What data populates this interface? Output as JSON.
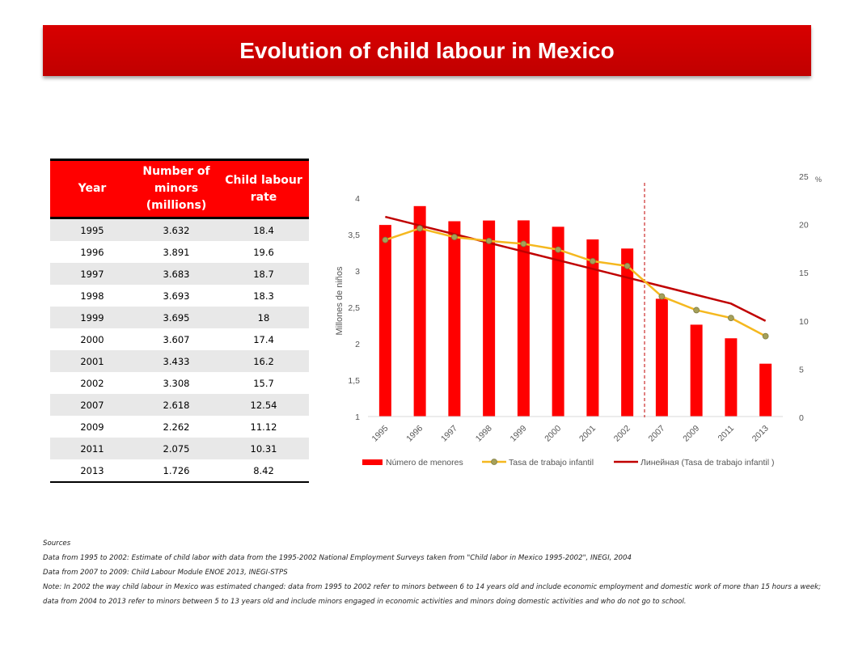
{
  "title": "Evolution of child labour in Mexico",
  "table": {
    "headers": [
      "Year",
      "Number of minors (millions)",
      "Child labour rate"
    ],
    "rows": [
      [
        "1995",
        "3.632",
        "18.4"
      ],
      [
        "1996",
        "3.891",
        "19.6"
      ],
      [
        "1997",
        "3.683",
        "18.7"
      ],
      [
        "1998",
        "3.693",
        "18.3"
      ],
      [
        "1999",
        "3.695",
        "18"
      ],
      [
        "2000",
        "3.607",
        "17.4"
      ],
      [
        "2001",
        "3.433",
        "16.2"
      ],
      [
        "2002",
        "3.308",
        "15.7"
      ],
      [
        "2007",
        "2.618",
        "12.54"
      ],
      [
        "2009",
        "2.262",
        "11.12"
      ],
      [
        "2011",
        "2.075",
        "10.31"
      ],
      [
        "2013",
        "1.726",
        "8.42"
      ]
    ]
  },
  "chart_data": {
    "type": "bar",
    "categories": [
      "1995",
      "1996",
      "1997",
      "1998",
      "1999",
      "2000",
      "2001",
      "2002",
      "2007",
      "2009",
      "2011",
      "2013"
    ],
    "series": [
      {
        "name": "Número de menores",
        "type": "bar",
        "axis": "left",
        "color": "#ff0000",
        "values": [
          3.632,
          3.891,
          3.683,
          3.693,
          3.695,
          3.607,
          3.433,
          3.308,
          2.618,
          2.262,
          2.075,
          1.726
        ]
      },
      {
        "name": "Tasa de trabajo infantil",
        "type": "line",
        "axis": "right",
        "color": "#f5b81f",
        "values": [
          18.4,
          19.6,
          18.7,
          18.3,
          18,
          17.4,
          16.2,
          15.7,
          12.54,
          11.12,
          10.31,
          8.42
        ]
      },
      {
        "name": "Линейная (Tasa de trabajo infantil )",
        "type": "trendline",
        "axis": "right",
        "color": "#c00000",
        "values": [
          20.8,
          19.9,
          19.0,
          18.1,
          17.2,
          16.3,
          15.4,
          14.5,
          13.6,
          12.7,
          11.8,
          10.0
        ]
      }
    ],
    "ylabel": "Millones de niños",
    "y2label": "%",
    "ylim": [
      1,
      4
    ],
    "y2lim": [
      0,
      25
    ],
    "yticks": [
      "1",
      "1,5",
      "2",
      "2,5",
      "3",
      "3,5",
      "4"
    ],
    "y2ticks": [
      "0",
      "5",
      "10",
      "15",
      "20",
      "25"
    ],
    "divider_after": "2002",
    "legend_position": "bottom",
    "grid": false
  },
  "sources": {
    "heading": "Sources",
    "lines": [
      "Data from 1995 to 2002: Estimate of child labor with data from the 1995-2002 National Employment Surveys taken from \"Child labor in Mexico 1995-2002\", INEGI, 2004",
      "Data from 2007 to 2009: Child Labour Module ENOE 2013, INEGI-STPS",
      "Note: In 2002 the way child labour in Mexico was estimated changed: data from 1995 to 2002 refer to minors between 6 to 14 years old and include economic employment and domestic work of more than 15 hours a week; data from 2004 to 2013 refer to minors between 5 to 13 years old and include minors engaged in economic activities and minors doing domestic activities and who do not go to school."
    ]
  }
}
